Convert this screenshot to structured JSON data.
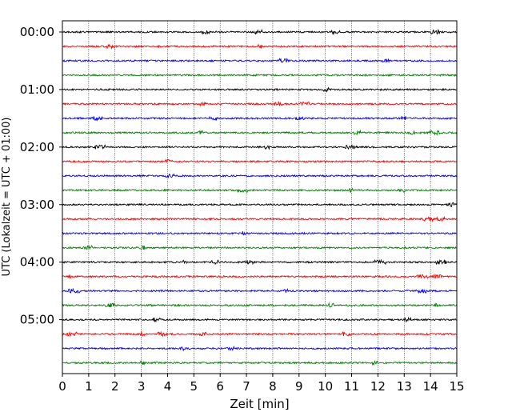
{
  "chart_data": {
    "type": "line",
    "title": "",
    "xlabel": "Zeit  [min]",
    "ylabel": "UTC (Lokalzeit = UTC + 01:00)",
    "xlim": [
      0,
      15
    ],
    "x_ticks": [
      0,
      1,
      2,
      3,
      4,
      5,
      6,
      7,
      8,
      9,
      10,
      11,
      12,
      13,
      14,
      15
    ],
    "x_tick_labels": [
      "0",
      "1",
      "2",
      "3",
      "4",
      "5",
      "6",
      "7",
      "8",
      "9",
      "10",
      "11",
      "12",
      "13",
      "14",
      "15"
    ],
    "y_ticks": [
      "00:00",
      "01:00",
      "02:00",
      "03:00",
      "04:00",
      "05:00"
    ],
    "y_tick_rows": [
      0,
      4,
      8,
      12,
      16,
      20
    ],
    "row_interval_minutes": 15,
    "row_count": 24,
    "grid": {
      "x_vertical_dotted": true
    },
    "color_cycle": [
      "#000000",
      "#ff0000",
      "#0000ff",
      "#008000"
    ],
    "rows": [
      {
        "start_utc": "00:00",
        "color": "#000000"
      },
      {
        "start_utc": "00:15",
        "color": "#ff0000"
      },
      {
        "start_utc": "00:30",
        "color": "#0000ff"
      },
      {
        "start_utc": "00:45",
        "color": "#008000"
      },
      {
        "start_utc": "01:00",
        "color": "#000000"
      },
      {
        "start_utc": "01:15",
        "color": "#ff0000"
      },
      {
        "start_utc": "01:30",
        "color": "#0000ff"
      },
      {
        "start_utc": "01:45",
        "color": "#008000"
      },
      {
        "start_utc": "02:00",
        "color": "#000000"
      },
      {
        "start_utc": "02:15",
        "color": "#ff0000"
      },
      {
        "start_utc": "02:30",
        "color": "#0000ff"
      },
      {
        "start_utc": "02:45",
        "color": "#008000"
      },
      {
        "start_utc": "03:00",
        "color": "#000000"
      },
      {
        "start_utc": "03:15",
        "color": "#ff0000"
      },
      {
        "start_utc": "03:30",
        "color": "#0000ff"
      },
      {
        "start_utc": "03:45",
        "color": "#008000"
      },
      {
        "start_utc": "04:00",
        "color": "#000000"
      },
      {
        "start_utc": "04:15",
        "color": "#ff0000"
      },
      {
        "start_utc": "04:30",
        "color": "#0000ff"
      },
      {
        "start_utc": "04:45",
        "color": "#008000"
      },
      {
        "start_utc": "05:00",
        "color": "#000000"
      },
      {
        "start_utc": "05:15",
        "color": "#ff0000"
      },
      {
        "start_utc": "05:30",
        "color": "#0000ff"
      },
      {
        "start_utc": "05:45",
        "color": "#008000"
      }
    ]
  }
}
